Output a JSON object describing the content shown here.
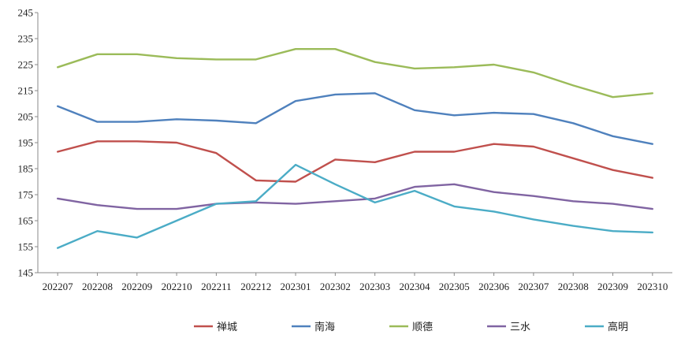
{
  "chart_data": {
    "type": "line",
    "title": "",
    "xlabel": "",
    "ylabel": "",
    "categories": [
      "202207",
      "202208",
      "202209",
      "202210",
      "202211",
      "202212",
      "202301",
      "202302",
      "202303",
      "202304",
      "202305",
      "202306",
      "202307",
      "202308",
      "202309",
      "202310"
    ],
    "ylim": [
      145,
      245
    ],
    "yticks": [
      145,
      155,
      165,
      175,
      185,
      195,
      205,
      215,
      225,
      235,
      245
    ],
    "grid": false,
    "legend_position": "bottom",
    "series": [
      {
        "name": "禅城",
        "color": "#c0504d",
        "values": [
          191.5,
          195.5,
          195.5,
          195,
          191,
          180.5,
          180,
          188.5,
          187.5,
          191.5,
          191.5,
          194.5,
          193.5,
          189,
          184.5,
          181.5
        ]
      },
      {
        "name": "南海",
        "color": "#4f81bd",
        "values": [
          209,
          203,
          203,
          204,
          203.5,
          202.5,
          211,
          213.5,
          214,
          207.5,
          205.5,
          206.5,
          206,
          202.5,
          197.5,
          194.5
        ]
      },
      {
        "name": "顺德",
        "color": "#9bbb59",
        "values": [
          224,
          229,
          229,
          227.5,
          227,
          227,
          231,
          231,
          226,
          223.5,
          224,
          225,
          222,
          217,
          212.5,
          214
        ]
      },
      {
        "name": "三水",
        "color": "#8064a2",
        "values": [
          173.5,
          171,
          169.5,
          169.5,
          171.5,
          172,
          171.5,
          172.5,
          173.5,
          178,
          179,
          176,
          174.5,
          172.5,
          171.5,
          169.5
        ]
      },
      {
        "name": "高明",
        "color": "#4bacc6",
        "values": [
          154.5,
          161,
          158.5,
          165,
          171.5,
          172.5,
          186.5,
          179,
          172,
          176.5,
          170.5,
          168.5,
          165.5,
          163,
          161,
          160.5
        ]
      }
    ]
  }
}
